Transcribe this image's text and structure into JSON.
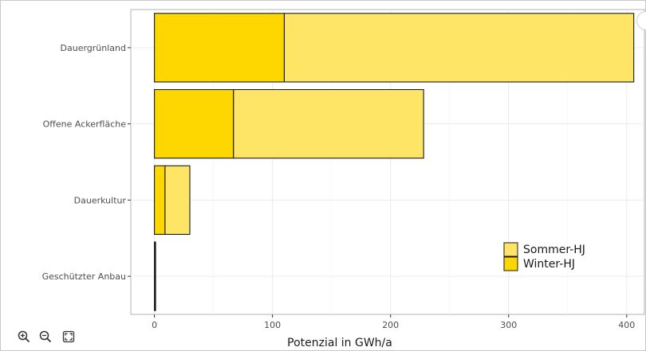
{
  "chart_data": {
    "type": "bar",
    "orientation": "horizontal",
    "stacked": true,
    "categories": [
      "Dauergrünland",
      "Offene Ackerfläche",
      "Dauerkultur",
      "Geschützter Anbau"
    ],
    "series": [
      {
        "name": "Winter-HJ",
        "values": [
          110,
          67,
          9,
          0.5
        ]
      },
      {
        "name": "Sommer-HJ",
        "values": [
          296,
          161,
          21,
          0.5
        ]
      }
    ],
    "xlabel": "Potenzial in GWh/a",
    "ylabel": "",
    "xlim": [
      -20,
      415
    ],
    "xticks": [
      0,
      100,
      200,
      300,
      400
    ],
    "grid": true,
    "legend": {
      "position": "bottom-right",
      "entries": [
        {
          "label": "Sommer-HJ",
          "color": "#FFE566"
        },
        {
          "label": "Winter-HJ",
          "color": "#FFD700"
        }
      ]
    },
    "colors": {
      "Winter-HJ": "#FFD700",
      "Sommer-HJ": "#FFE566"
    }
  },
  "toolbar": {
    "zoom_in_icon": "zoom-in-icon",
    "zoom_out_icon": "zoom-out-icon",
    "fit_icon": "fit-screen-icon"
  }
}
